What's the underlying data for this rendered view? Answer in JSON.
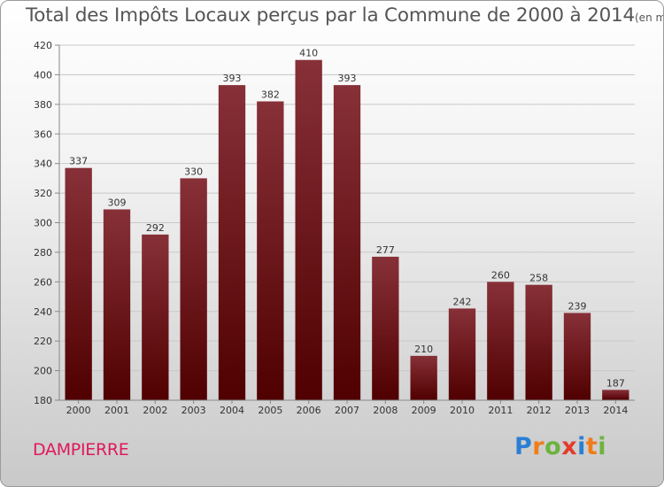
{
  "header": {
    "title": "Total des Impôts Locaux perçus par la Commune de 2000 à 2014",
    "unit": "(en milliers d'€)"
  },
  "footer": {
    "commune": "DAMPIERRE",
    "logo": [
      "P",
      "r",
      "o",
      "x",
      "i",
      "t",
      "i"
    ],
    "logo_colors": [
      "#2a7fd4",
      "#f07c1a",
      "#6cb33e",
      "#e43b2c",
      "#2a7fd4",
      "#f07c1a",
      "#6cb33e"
    ]
  },
  "chart_data": {
    "type": "bar",
    "title": "Total des Impôts Locaux perçus par la Commune de 2000 à 2014",
    "subtitle": "(en milliers d'€)",
    "xlabel": "",
    "ylabel": "",
    "categories": [
      "2000",
      "2001",
      "2002",
      "2003",
      "2004",
      "2005",
      "2006",
      "2007",
      "2008",
      "2009",
      "2010",
      "2011",
      "2012",
      "2013",
      "2014"
    ],
    "values": [
      337,
      309,
      292,
      330,
      393,
      382,
      410,
      393,
      277,
      210,
      242,
      260,
      258,
      239,
      187
    ],
    "ylim": [
      180,
      420
    ],
    "yticks": [
      180,
      200,
      220,
      240,
      260,
      280,
      300,
      320,
      340,
      360,
      380,
      400,
      420
    ],
    "grid": true,
    "bar_color": "#7a1c24",
    "bar_color_dark": "#4a0a0f",
    "grid_color": "#c8c8c8"
  }
}
